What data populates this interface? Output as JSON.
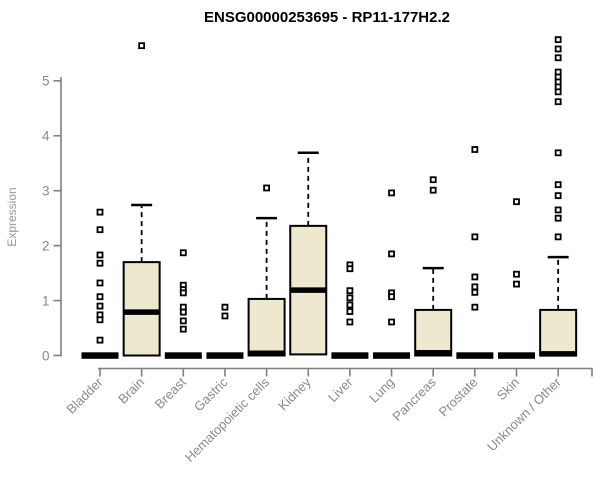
{
  "colors": {
    "box_fill": "#EDE8CE",
    "box_stroke": "#000000",
    "median": "#000000",
    "whisker": "#000000",
    "outlier_fill": "#FFFFFF",
    "axis_line": "#7f7f7f",
    "tick_label": "#8a8a8a",
    "title_color": "#000000",
    "background": "#FFFFFF"
  },
  "chart_data": {
    "type": "boxplot",
    "title": "ENSG00000253695 - RP11-177H2.2",
    "ylabel": "Expression",
    "xlabel": "",
    "ylim": [
      0,
      5.8
    ],
    "yticks": [
      0,
      1,
      2,
      3,
      4,
      5
    ],
    "grid": "off",
    "legend": "none",
    "categories": [
      "Bladder",
      "Brain",
      "Breast",
      "Gastric",
      "Hematopoietic cells",
      "Kidney",
      "Liver",
      "Lung",
      "Pancreas",
      "Prostate",
      "Skin",
      "Unknown / Other"
    ],
    "series": [
      {
        "name": "Bladder",
        "flat": true,
        "q1": 0,
        "median": 0,
        "q3": 0,
        "whisker_low": 0,
        "whisker_high": 0,
        "outliers": [
          2.61,
          2.29,
          1.83,
          1.68,
          1.32,
          1.07,
          0.9,
          0.74,
          0.65,
          0.28
        ]
      },
      {
        "name": "Brain",
        "flat": false,
        "q1": 0,
        "median": 0.79,
        "q3": 1.7,
        "whisker_low": 0,
        "whisker_high": 2.74,
        "outliers": [
          5.64
        ]
      },
      {
        "name": "Breast",
        "flat": true,
        "q1": 0,
        "median": 0,
        "q3": 0,
        "whisker_low": 0,
        "whisker_high": 0,
        "outliers": [
          1.87,
          1.28,
          1.2,
          1.14,
          0.88,
          0.79,
          0.63,
          0.48
        ]
      },
      {
        "name": "Gastric",
        "flat": true,
        "q1": 0,
        "median": 0,
        "q3": 0,
        "whisker_low": 0,
        "whisker_high": 0,
        "outliers": [
          0.88,
          0.72
        ]
      },
      {
        "name": "Hematopoietic cells",
        "flat": false,
        "q1": 0,
        "median": 0.04,
        "q3": 1.03,
        "whisker_low": 0,
        "whisker_high": 2.5,
        "outliers": [
          3.05
        ]
      },
      {
        "name": "Kidney",
        "flat": false,
        "q1": 0.02,
        "median": 1.19,
        "q3": 2.36,
        "whisker_low": 0.02,
        "whisker_high": 3.69,
        "outliers": []
      },
      {
        "name": "Liver",
        "flat": true,
        "q1": 0,
        "median": 0,
        "q3": 0,
        "whisker_low": 0,
        "whisker_high": 0,
        "outliers": [
          1.65,
          1.58,
          1.18,
          1.05,
          0.92,
          0.8,
          0.61
        ]
      },
      {
        "name": "Lung",
        "flat": true,
        "q1": 0,
        "median": 0,
        "q3": 0,
        "whisker_low": 0,
        "whisker_high": 0,
        "outliers": [
          2.96,
          1.85,
          1.14,
          1.07,
          0.61
        ]
      },
      {
        "name": "Pancreas",
        "flat": false,
        "q1": 0,
        "median": 0.05,
        "q3": 0.83,
        "whisker_low": 0,
        "whisker_high": 1.59,
        "outliers": [
          3.2,
          3.01
        ]
      },
      {
        "name": "Prostate",
        "flat": true,
        "q1": 0,
        "median": 0,
        "q3": 0,
        "whisker_low": 0,
        "whisker_high": 0,
        "outliers": [
          3.75,
          2.16,
          1.43,
          1.25,
          1.15,
          0.88
        ]
      },
      {
        "name": "Skin",
        "flat": true,
        "q1": 0,
        "median": 0,
        "q3": 0,
        "whisker_low": 0,
        "whisker_high": 0,
        "outliers": [
          2.8,
          1.48,
          1.3
        ]
      },
      {
        "name": "Unknown / Other",
        "flat": false,
        "q1": 0,
        "median": 0.03,
        "q3": 0.83,
        "whisker_low": 0,
        "whisker_high": 1.79,
        "outliers": [
          5.75,
          5.58,
          5.42,
          5.16,
          5.07,
          4.98,
          4.89,
          4.8,
          4.62,
          3.69,
          3.11,
          2.91,
          2.65,
          2.5,
          2.16
        ]
      }
    ]
  }
}
